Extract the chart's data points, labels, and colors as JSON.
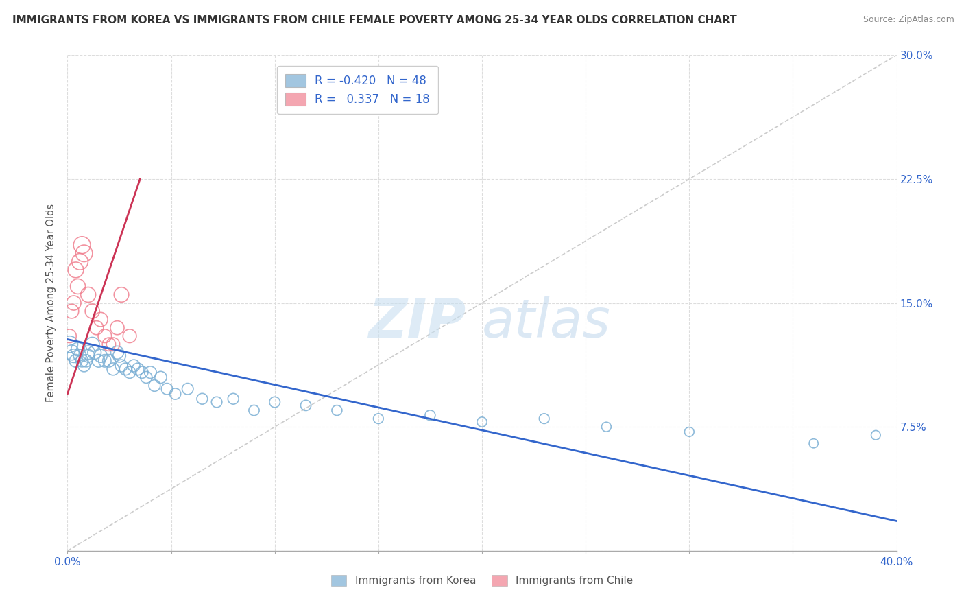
{
  "title": "IMMIGRANTS FROM KOREA VS IMMIGRANTS FROM CHILE FEMALE POVERTY AMONG 25-34 YEAR OLDS CORRELATION CHART",
  "source": "Source: ZipAtlas.com",
  "ylabel": "Female Poverty Among 25-34 Year Olds",
  "yticks": [
    0.0,
    0.075,
    0.15,
    0.225,
    0.3
  ],
  "ytick_labels_right": [
    "",
    "7.5%",
    "15.0%",
    "22.5%",
    "30.0%"
  ],
  "xticks": [
    0.0,
    0.05,
    0.1,
    0.15,
    0.2,
    0.25,
    0.3,
    0.35,
    0.4
  ],
  "xlim": [
    0.0,
    0.4
  ],
  "ylim": [
    0.0,
    0.3
  ],
  "watermark_zip": "ZIP",
  "watermark_atlas": "atlas",
  "korea_R": -0.42,
  "korea_N": 48,
  "chile_R": 0.337,
  "chile_N": 18,
  "korea_color": "#7bafd4",
  "chile_color": "#f08090",
  "korea_line_color": "#3366cc",
  "chile_line_color": "#cc3355",
  "ref_line_color": "#cccccc",
  "background_color": "#ffffff",
  "grid_color": "#dddddd",
  "korea_data_x": [
    0.001,
    0.002,
    0.003,
    0.004,
    0.005,
    0.006,
    0.007,
    0.008,
    0.009,
    0.01,
    0.01,
    0.012,
    0.013,
    0.015,
    0.016,
    0.018,
    0.02,
    0.022,
    0.024,
    0.025,
    0.026,
    0.028,
    0.03,
    0.032,
    0.034,
    0.036,
    0.038,
    0.04,
    0.042,
    0.045,
    0.048,
    0.052,
    0.058,
    0.065,
    0.072,
    0.08,
    0.09,
    0.1,
    0.115,
    0.13,
    0.15,
    0.175,
    0.2,
    0.23,
    0.26,
    0.3,
    0.36,
    0.39
  ],
  "korea_data_y": [
    0.125,
    0.12,
    0.118,
    0.115,
    0.122,
    0.118,
    0.115,
    0.112,
    0.115,
    0.12,
    0.118,
    0.125,
    0.12,
    0.115,
    0.118,
    0.115,
    0.115,
    0.11,
    0.12,
    0.118,
    0.112,
    0.11,
    0.108,
    0.112,
    0.11,
    0.108,
    0.105,
    0.108,
    0.1,
    0.105,
    0.098,
    0.095,
    0.098,
    0.092,
    0.09,
    0.092,
    0.085,
    0.09,
    0.088,
    0.085,
    0.08,
    0.082,
    0.078,
    0.08,
    0.075,
    0.072,
    0.065,
    0.07
  ],
  "chile_data_x": [
    0.001,
    0.002,
    0.003,
    0.004,
    0.005,
    0.006,
    0.007,
    0.008,
    0.01,
    0.012,
    0.014,
    0.016,
    0.018,
    0.02,
    0.022,
    0.024,
    0.026,
    0.03
  ],
  "chile_data_y": [
    0.13,
    0.145,
    0.15,
    0.17,
    0.16,
    0.175,
    0.185,
    0.18,
    0.155,
    0.145,
    0.135,
    0.14,
    0.13,
    0.125,
    0.125,
    0.135,
    0.155,
    0.13
  ],
  "korea_sizes": [
    300,
    250,
    200,
    180,
    200,
    180,
    170,
    160,
    170,
    200,
    180,
    220,
    200,
    180,
    190,
    175,
    175,
    165,
    185,
    180,
    165,
    160,
    155,
    165,
    160,
    155,
    150,
    160,
    145,
    155,
    140,
    135,
    140,
    130,
    125,
    130,
    120,
    125,
    120,
    115,
    110,
    115,
    105,
    110,
    100,
    98,
    90,
    95
  ],
  "chile_sizes": [
    200,
    220,
    230,
    270,
    250,
    290,
    320,
    310,
    250,
    230,
    210,
    220,
    200,
    195,
    195,
    210,
    240,
    200
  ]
}
